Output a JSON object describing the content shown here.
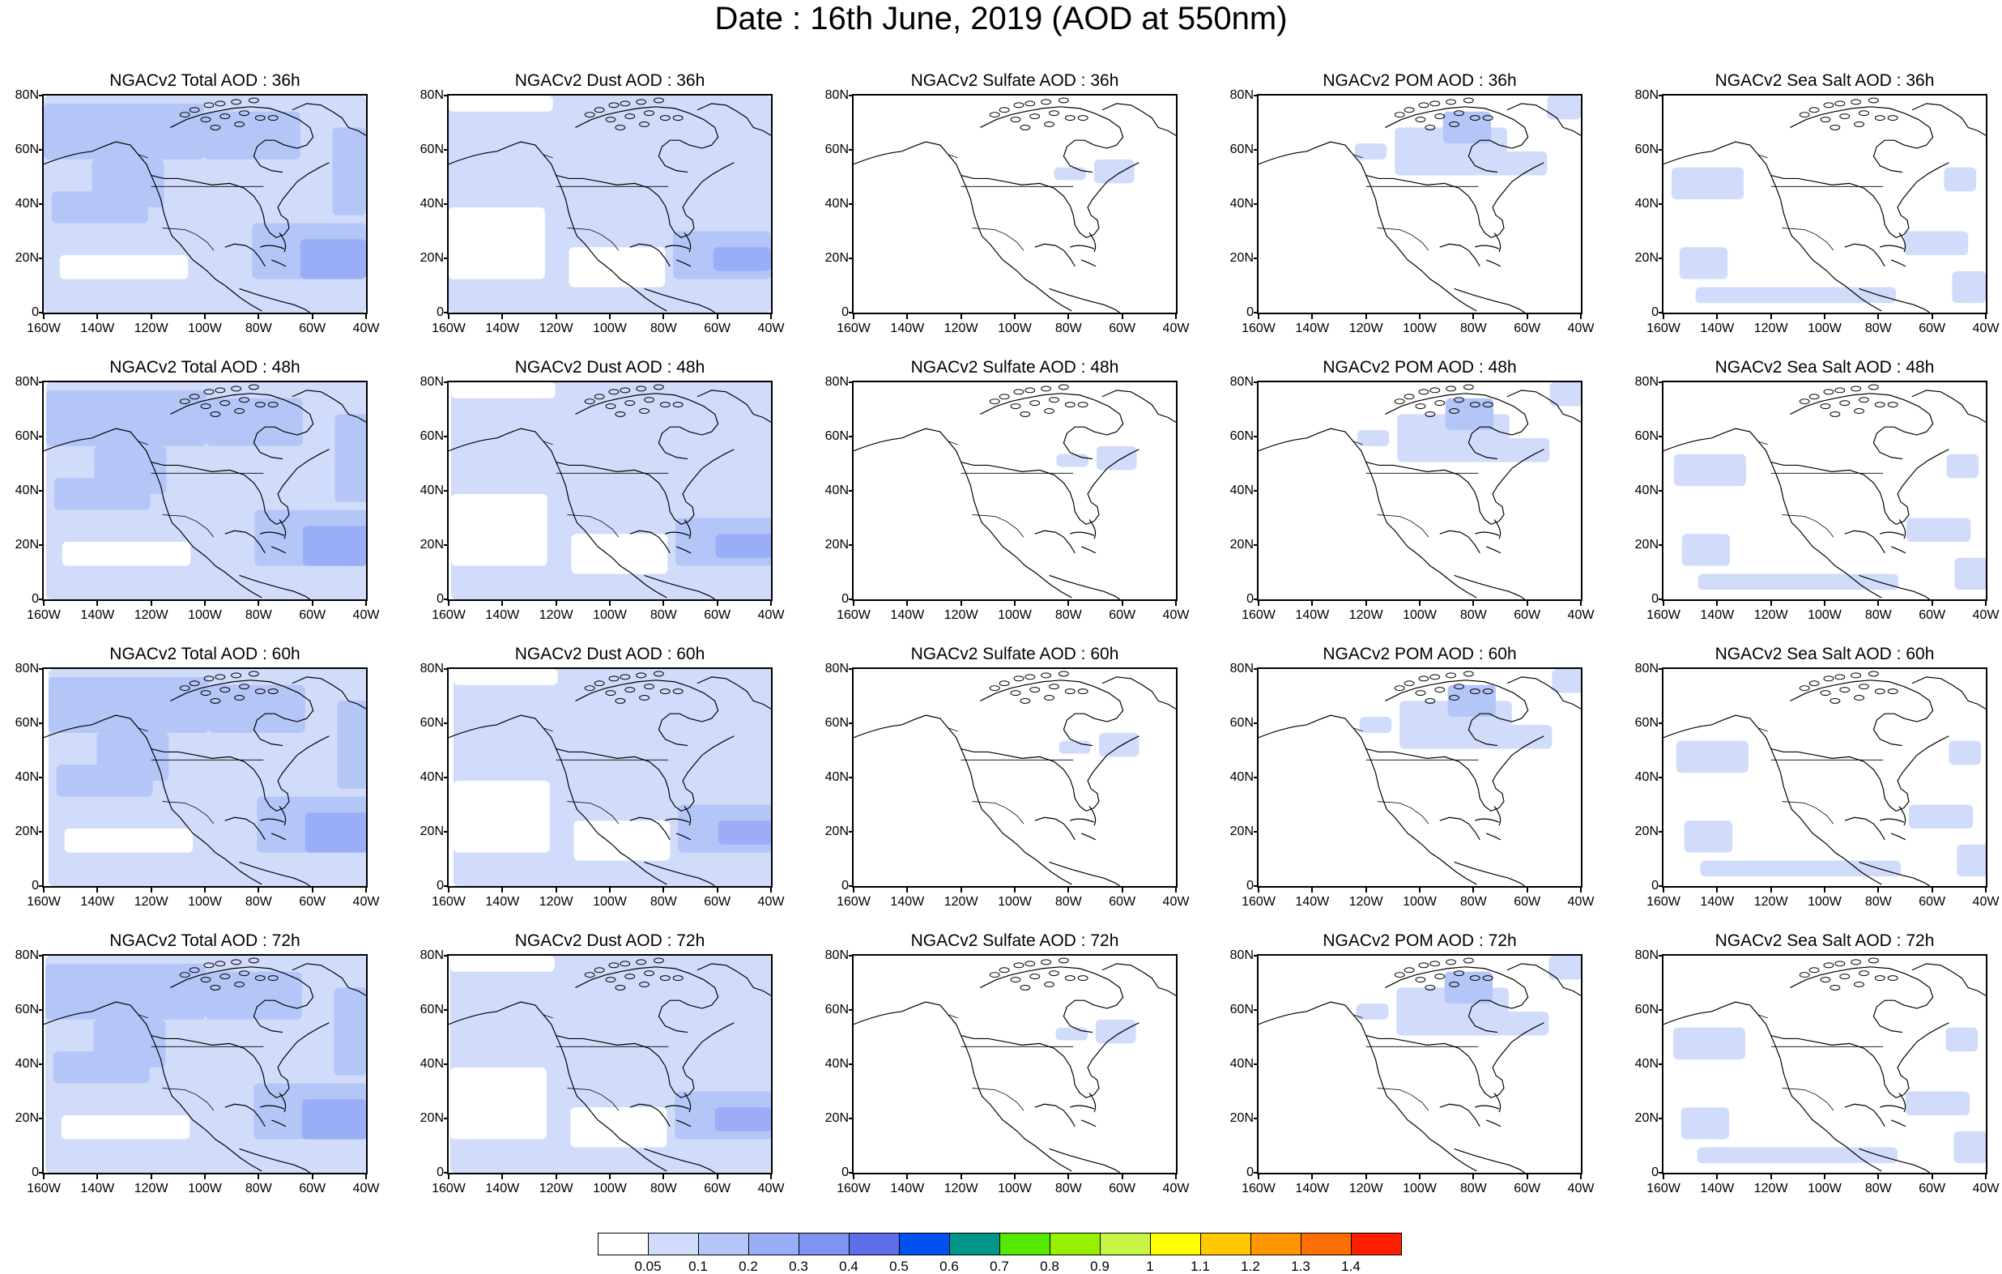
{
  "title": "Date : 16th June, 2019 (AOD at 550nm)",
  "lat_labels": [
    "80N",
    "60N",
    "40N",
    "20N",
    "0"
  ],
  "lon_labels": [
    "160W",
    "140W",
    "120W",
    "100W",
    "80W",
    "60W",
    "40W"
  ],
  "panel_titles": [
    [
      "NGACv2 Total AOD : 36h",
      "NGACv2 Dust AOD : 36h",
      "NGACv2 Sulfate AOD : 36h",
      "NGACv2 POM AOD : 36h",
      "NGACv2 Sea Salt AOD : 36h"
    ],
    [
      "NGACv2 Total AOD : 48h",
      "NGACv2 Dust AOD : 48h",
      "NGACv2 Sulfate AOD : 48h",
      "NGACv2 POM AOD : 48h",
      "NGACv2 Sea Salt AOD : 48h"
    ],
    [
      "NGACv2 Total AOD : 60h",
      "NGACv2 Dust AOD : 60h",
      "NGACv2 Sulfate AOD : 60h",
      "NGACv2 POM AOD : 60h",
      "NGACv2 Sea Salt AOD : 60h"
    ],
    [
      "NGACv2 Total AOD : 72h",
      "NGACv2 Dust AOD : 72h",
      "NGACv2 Sulfate AOD : 72h",
      "NGACv2 POM AOD : 72h",
      "NGACv2 Sea Salt  AOD : 72h"
    ]
  ],
  "legend": {
    "labels": [
      "0.05",
      "0.1",
      "0.2",
      "0.3",
      "0.4",
      "0.5",
      "0.6",
      "0.7",
      "0.8",
      "0.9",
      "1",
      "1.1",
      "1.2",
      "1.3",
      "1.4"
    ],
    "colors": [
      "#ffffff",
      "#d1dcfb",
      "#b4c6f8",
      "#99aef7",
      "#7f93f2",
      "#5e6de9",
      "#0051f0",
      "#00968a",
      "#55e800",
      "#96f000",
      "#c6f545",
      "#ffff00",
      "#ffc800",
      "#ff9600",
      "#ff6e00",
      "#ff1e00"
    ]
  },
  "colors": {
    "shade_light": "#d1dcfb",
    "shade_mid": "#b4c6f8",
    "shade_dark": "#99aef7",
    "coast": "#000000"
  }
}
